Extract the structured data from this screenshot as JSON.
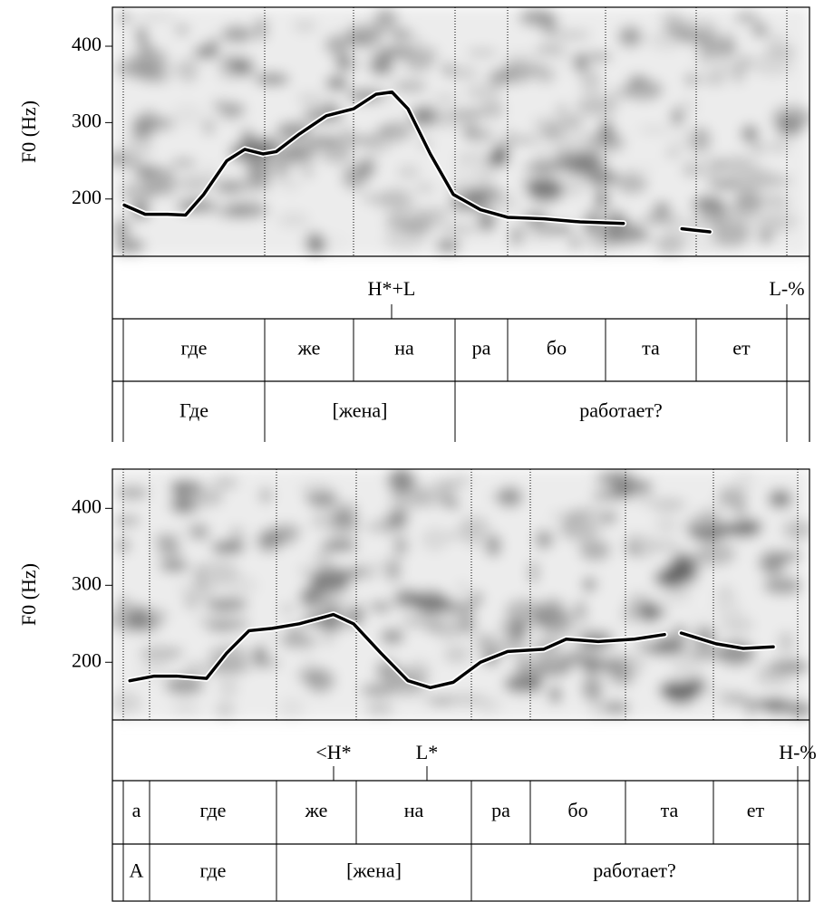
{
  "chart_data": [
    {
      "type": "line",
      "y_label": "F0 (Hz)",
      "ylim": [
        125,
        451
      ],
      "yticks": [
        200,
        300,
        400
      ],
      "xlim": [
        0,
        1
      ],
      "x": [
        0.017,
        0.047,
        0.079,
        0.105,
        0.131,
        0.164,
        0.19,
        0.216,
        0.235,
        0.268,
        0.307,
        0.346,
        0.378,
        0.401,
        0.424,
        0.456,
        0.489,
        0.528,
        0.567,
        0.619,
        0.671,
        0.733,
        0.78,
        0.817,
        0.857
      ],
      "series": [
        {
          "color": "#000000",
          "values": [
            192,
            180,
            180,
            179,
            206,
            250,
            265,
            259,
            262,
            285,
            309,
            318,
            337,
            340,
            318,
            259,
            206,
            186,
            176,
            174,
            170,
            168,
            null,
            161,
            157
          ]
        }
      ],
      "tones": [
        "H*+L",
        "L-%"
      ],
      "syllables": [
        "где",
        "же",
        "на",
        "ра",
        "бо",
        "та",
        "ет"
      ],
      "words": [
        "Где",
        "[жена]",
        "работает?"
      ]
    },
    {
      "type": "line",
      "y_label": "F0 (Hz)",
      "ylim": [
        125,
        451
      ],
      "yticks": [
        200,
        300,
        400
      ],
      "xlim": [
        0,
        1
      ],
      "x": [
        0.025,
        0.06,
        0.092,
        0.135,
        0.164,
        0.196,
        0.229,
        0.268,
        0.317,
        0.346,
        0.385,
        0.424,
        0.456,
        0.489,
        0.528,
        0.567,
        0.619,
        0.651,
        0.697,
        0.749,
        0.792,
        0.805,
        0.816,
        0.866,
        0.905,
        0.948
      ],
      "series": [
        {
          "color": "#000000",
          "values": [
            176,
            182,
            182,
            179,
            212,
            241,
            244,
            250,
            262,
            250,
            212,
            176,
            167,
            174,
            200,
            214,
            217,
            230,
            227,
            230,
            236,
            null,
            238,
            224,
            218,
            220
          ]
        }
      ],
      "tones": [
        "<H*",
        "L*",
        "H-%"
      ],
      "syllables": [
        "а",
        "где",
        "же",
        "на",
        "ра",
        "бо",
        "та",
        "ет"
      ],
      "words": [
        "А",
        "где",
        "[жена]",
        "работает?"
      ]
    }
  ]
}
